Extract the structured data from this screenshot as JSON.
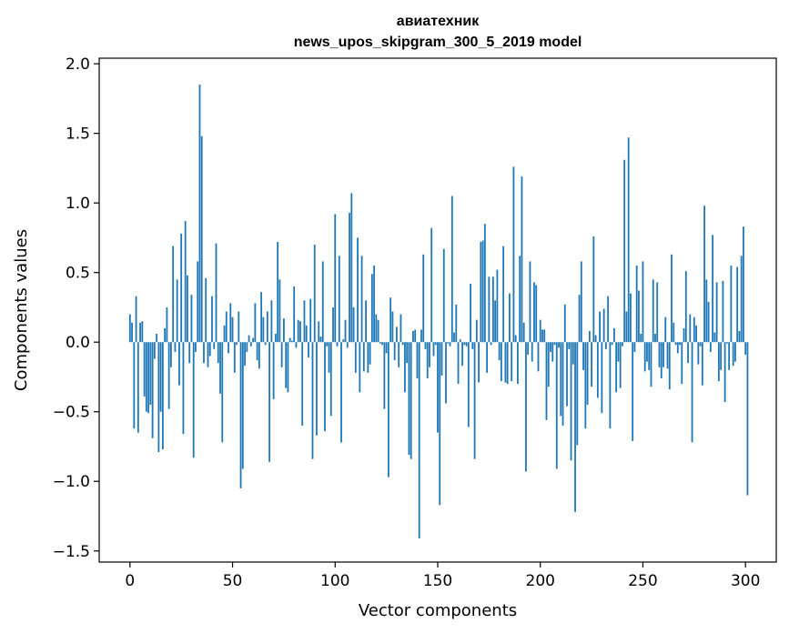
{
  "chart_data": {
    "type": "bar",
    "title": "авиатехник",
    "subtitle": "news_upos_skipgram_300_5_2019 model",
    "xlabel": "Vector components",
    "ylabel": "Components values",
    "xlim": [
      -15,
      315
    ],
    "ylim": [
      -1.58,
      2.04
    ],
    "xticks": [
      0,
      50,
      100,
      150,
      200,
      250,
      300
    ],
    "xtick_labels": [
      "0",
      "50",
      "100",
      "150",
      "200",
      "250",
      "300"
    ],
    "yticks": [
      -1.5,
      -1.0,
      -0.5,
      0.0,
      0.5,
      1.0,
      1.5,
      2.0
    ],
    "ytick_labels": [
      "−1.5",
      "−1.0",
      "−0.5",
      "0.0",
      "0.5",
      "1.0",
      "1.5",
      "2.0"
    ],
    "bar_color": "#1f77b4",
    "grid": false,
    "values": [
      0.2,
      0.14,
      -0.62,
      0.33,
      -0.65,
      0.14,
      0.15,
      -0.39,
      -0.5,
      -0.51,
      -0.45,
      -0.69,
      -0.12,
      0.06,
      -0.79,
      -0.5,
      -0.77,
      0.1,
      0.25,
      -0.48,
      -0.18,
      0.69,
      -0.07,
      0.45,
      -0.31,
      0.78,
      -0.66,
      0.87,
      0.48,
      -0.15,
      0.34,
      -0.83,
      -0.07,
      0.58,
      1.85,
      1.48,
      -0.15,
      0.46,
      -0.18,
      -0.1,
      0.33,
      -0.05,
      0.71,
      -0.15,
      -0.37,
      -0.72,
      0.12,
      0.22,
      -0.08,
      0.28,
      0.18,
      -0.22,
      -0.02,
      0.22,
      -1.05,
      -0.91,
      -0.17,
      -0.07,
      0.05,
      -0.03,
      0.03,
      0.28,
      -0.13,
      -0.19,
      0.36,
      0.18,
      -0.02,
      0.22,
      -0.86,
      0.3,
      -0.41,
      0.06,
      0.72,
      0.45,
      -0.18,
      0.17,
      -0.33,
      -0.36,
      0.03,
      0.01,
      0.4,
      -0.04,
      0.16,
      0.15,
      -0.6,
      0.3,
      0.12,
      -0.11,
      0.31,
      -0.84,
      0.7,
      -0.67,
      0.15,
      0.04,
      0.58,
      -0.64,
      -0.03,
      -0.22,
      -0.53,
      0.25,
      0.92,
      -0.03,
      0.62,
      -0.72,
      0.02,
      0.16,
      -0.04,
      0.93,
      1.07,
      0.25,
      -0.22,
      0.75,
      -0.36,
      0.62,
      -0.21,
      0.3,
      -0.22,
      -0.16,
      0.49,
      0.55,
      0.2,
      0.16,
      -0.01,
      -0.02,
      -0.48,
      -0.08,
      -0.97,
      0.32,
      0.22,
      -0.13,
      0.11,
      -0.18,
      0.2,
      -0.02,
      -0.36,
      -0.15,
      -0.81,
      -0.84,
      0.08,
      0.09,
      -0.26,
      -1.41,
      0.09,
      0.63,
      -0.05,
      -0.26,
      -0.18,
      0.82,
      -0.1,
      -0.02,
      -0.65,
      -1.17,
      -0.24,
      0.67,
      -0.44,
      -0.01,
      -0.03,
      1.05,
      0.07,
      0.27,
      -0.3,
      0.02,
      -0.17,
      -0.02,
      -0.03,
      -0.61,
      0.42,
      -0.05,
      -0.84,
      0.16,
      -0.29,
      0.72,
      0.73,
      0.85,
      -0.22,
      0.47,
      -0.02,
      0.47,
      0.3,
      0.52,
      -0.13,
      -0.28,
      0.69,
      -0.29,
      -0.3,
      0.35,
      -0.28,
      1.26,
      0.05,
      -0.3,
      0.62,
      1.19,
      0.14,
      -0.93,
      -0.09,
      0.58,
      -0.14,
      0.43,
      0.41,
      -0.21,
      0.16,
      0.09,
      0.09,
      -0.56,
      -0.32,
      -0.07,
      -0.14,
      -0.02,
      -0.91,
      -0.04,
      -0.53,
      -0.6,
      0.27,
      -0.46,
      -0.05,
      -0.85,
      -0.16,
      -1.22,
      -0.74,
      0.34,
      0.58,
      -0.2,
      -0.62,
      -0.45,
      0.08,
      -0.32,
      0.76,
      0.05,
      -0.4,
      0.22,
      -0.51,
      0.24,
      -0.05,
      0.33,
      -0.62,
      -0.02,
      0.1,
      -0.36,
      -0.14,
      -0.33,
      -0.03,
      1.31,
      0.22,
      1.47,
      0.35,
      -0.71,
      -0.07,
      0.55,
      0.37,
      0.06,
      0.58,
      -0.21,
      -0.14,
      -0.2,
      -0.32,
      0.45,
      0.06,
      0.43,
      -0.18,
      -0.26,
      -0.18,
      0.18,
      -0.19,
      -0.34,
      0.63,
      0.14,
      -0.02,
      -0.08,
      -0.02,
      -0.3,
      0.1,
      0.51,
      -0.15,
      0.2,
      -0.72,
      0.18,
      0.12,
      -0.16,
      -0.03,
      -0.31,
      0.98,
      0.45,
      0.29,
      -0.07,
      0.77,
      0.07,
      0.43,
      -0.28,
      -0.2,
      0.44,
      -0.43,
      -0.01,
      -0.2,
      0.55,
      -0.17,
      -0.14,
      0.54,
      0.08,
      0.62,
      0.83,
      -0.09,
      -1.1
    ]
  }
}
